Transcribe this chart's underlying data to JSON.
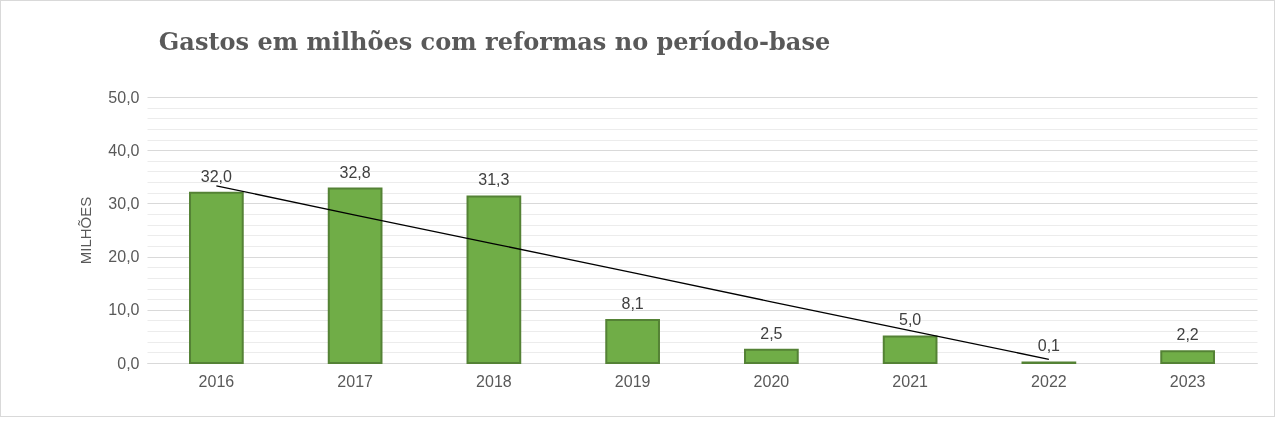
{
  "chart_data": {
    "type": "bar",
    "title": "Gastos em milhões com reformas no período-base",
    "ylabel": "MILHÕES",
    "categories": [
      "2016",
      "2017",
      "2018",
      "2019",
      "2020",
      "2021",
      "2022",
      "2023"
    ],
    "series": [
      {
        "color": "#70ad47",
        "values": [
          32.0,
          32.8,
          31.3,
          8.1,
          2.5,
          5.0,
          0.1,
          2.2
        ],
        "value_labels": [
          "32,0",
          "32,8",
          "31,3",
          "8,1",
          "2,5",
          "5,0",
          "0,1",
          "2,2"
        ]
      },
      {
        "type": "line",
        "color": "#000000",
        "values": [
          33.3,
          27.8,
          22.4,
          17.0,
          11.5,
          6.1,
          0.7,
          null
        ]
      }
    ],
    "ylim": [
      0,
      50
    ],
    "yticks": [
      {
        "value": 0,
        "label": "0,0"
      },
      {
        "value": 2,
        "label": null
      },
      {
        "value": 4,
        "label": null
      },
      {
        "value": 6,
        "label": null
      },
      {
        "value": 8,
        "label": null
      },
      {
        "value": 10,
        "label": "10,0"
      },
      {
        "value": 12,
        "label": null
      },
      {
        "value": 14,
        "label": null
      },
      {
        "value": 16,
        "label": null
      },
      {
        "value": 18,
        "label": null
      },
      {
        "value": 20,
        "label": "20,0"
      },
      {
        "value": 22,
        "label": null
      },
      {
        "value": 24,
        "label": null
      },
      {
        "value": 26,
        "label": null
      },
      {
        "value": 28,
        "label": null
      },
      {
        "value": 30,
        "label": "30,0"
      },
      {
        "value": 32,
        "label": null
      },
      {
        "value": 34,
        "label": null
      },
      {
        "value": 36,
        "label": null
      },
      {
        "value": 38,
        "label": null
      },
      {
        "value": 40,
        "label": "40,0"
      },
      {
        "value": 42,
        "label": null
      },
      {
        "value": 44,
        "label": null
      },
      {
        "value": 46,
        "label": null
      },
      {
        "value": 48,
        "label": null
      },
      {
        "value": 50,
        "label": "50,0"
      }
    ],
    "grid": "y"
  }
}
